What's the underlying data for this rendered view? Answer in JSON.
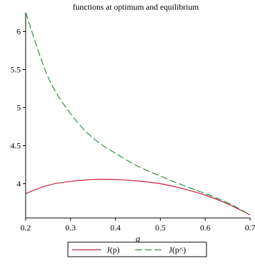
{
  "chart_data": {
    "type": "line",
    "title": "functions at optimum and equilibrium",
    "xlabel": "q",
    "ylabel": "",
    "xlim": [
      0.2,
      0.7
    ],
    "ylim": [
      3.55,
      6.25
    ],
    "grid": false,
    "legend_position": "bottom",
    "x_ticks": [
      "0.2",
      "0.3",
      "0.4",
      "0.5",
      "0.6",
      "0.7"
    ],
    "y_ticks": [
      "4",
      "4.5",
      "5",
      "5.5",
      "6"
    ],
    "series": [
      {
        "name": "J(p)",
        "color": "#c41e3a",
        "style": "solid",
        "x": [
          0.2,
          0.25,
          0.3,
          0.35,
          0.4,
          0.45,
          0.5,
          0.55,
          0.6,
          0.65,
          0.7
        ],
        "y": [
          3.87,
          3.98,
          4.03,
          4.055,
          4.055,
          4.035,
          4.0,
          3.935,
          3.85,
          3.735,
          3.59
        ]
      },
      {
        "name": "J(p^)",
        "color": "#2e8b3a",
        "style": "dashed",
        "x": [
          0.2,
          0.25,
          0.3,
          0.35,
          0.4,
          0.45,
          0.5,
          0.55,
          0.6,
          0.65,
          0.7
        ],
        "y": [
          6.25,
          5.4,
          4.92,
          4.6,
          4.4,
          4.23,
          4.1,
          3.98,
          3.87,
          3.75,
          3.59
        ]
      }
    ]
  }
}
